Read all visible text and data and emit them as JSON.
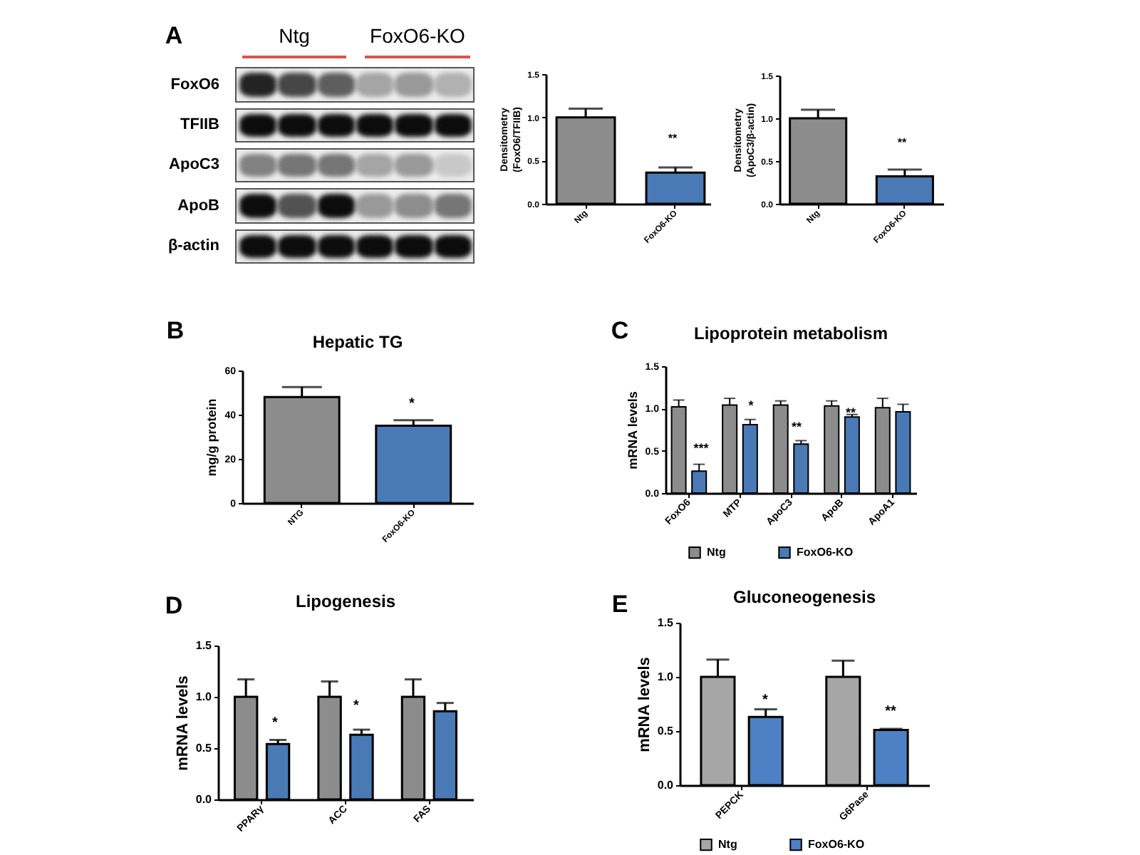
{
  "chart_data": [
    {
      "type": "other",
      "categories": [
        "Ntg",
        "FoxO6-KO"
      ],
      "y_categories": [
        "FoxO6",
        "TFIIB",
        "ApoC3",
        "ApoB",
        "β-actin"
      ],
      "colors": [
        "#d9534f",
        "#d9534f"
      ],
      "annotations": [
        "A"
      ]
    },
    {
      "type": "bar",
      "ylabel": "Densitometry\n(FoxO6/TFIIB)",
      "categories": [
        "Ntg",
        "FoxO6-KO"
      ],
      "values": [
        1.0,
        0.36
      ],
      "errors": [
        [
          1.0,
          1.1
        ],
        [
          0.36,
          0.42
        ]
      ],
      "colors": [
        "#8c8c8c",
        "#4a7ab5"
      ],
      "ylim": [
        0,
        1.5
      ],
      "yticks": [
        {
          "value": 0,
          "label": "0.0"
        },
        {
          "value": 0.5,
          "label": "0.5"
        },
        {
          "value": 1,
          "label": "1.0"
        },
        {
          "value": 1.5,
          "label": "1.5"
        }
      ],
      "annotations": [
        "**"
      ]
    },
    {
      "type": "bar",
      "ylabel": "Densitometry\n(ApoC3/β-actin)",
      "categories": [
        "Ntg",
        "FoxO6-KO"
      ],
      "values": [
        1.0,
        0.32
      ],
      "errors": [
        [
          1.0,
          1.1
        ],
        [
          0.32,
          0.4
        ]
      ],
      "colors": [
        "#8c8c8c",
        "#4a7ab5"
      ],
      "ylim": [
        0,
        1.5
      ],
      "yticks": [
        {
          "value": 0,
          "label": "0.0"
        },
        {
          "value": 0.5,
          "label": "0.5"
        },
        {
          "value": 1,
          "label": "1.0"
        },
        {
          "value": 1.5,
          "label": "1.5"
        }
      ],
      "annotations": [
        "**"
      ]
    },
    {
      "type": "bar",
      "title": "Hepatic TG",
      "ylabel": "mg/g protein",
      "categories": [
        "NTG",
        "FoxO6-KO"
      ],
      "values": [
        48,
        35
      ],
      "errors": [
        [
          48,
          52.5
        ],
        [
          35,
          37.5
        ]
      ],
      "colors": [
        "#8c8c8c",
        "#4a7ab5"
      ],
      "ylim": [
        0,
        60
      ],
      "yticks": [
        0,
        20,
        40,
        60
      ],
      "annotations": [
        "B",
        "*"
      ]
    },
    {
      "type": "bar",
      "title": "Lipoprotein metabolism",
      "ylabel": "mRNA levels",
      "categories": [
        "FoxO6",
        "MTP",
        "ApoC3",
        "ApoB",
        "ApoA1"
      ],
      "series": [
        {
          "name": "Ntg",
          "color": "#8c8c8c",
          "values": [
            1.02,
            1.04,
            1.04,
            1.03,
            1.01
          ],
          "errors": [
            [
              1.02,
              1.1
            ],
            [
              1.04,
              1.12
            ],
            [
              1.04,
              1.09
            ],
            [
              1.03,
              1.09
            ],
            [
              1.01,
              1.12
            ]
          ]
        },
        {
          "name": "FoxO6-KO",
          "color": "#4a7ab5",
          "values": [
            0.26,
            0.81,
            0.58,
            0.9,
            0.96
          ],
          "errors": [
            [
              0.26,
              0.34
            ],
            [
              0.81,
              0.87
            ],
            [
              0.58,
              0.62
            ],
            [
              0.9,
              0.93
            ],
            [
              0.96,
              1.05
            ]
          ]
        }
      ],
      "ylim": [
        0,
        1.5
      ],
      "yticks": [
        {
          "value": 0,
          "label": "0.0"
        },
        {
          "value": 0.5,
          "label": "0.5"
        },
        {
          "value": 1,
          "label": "1.0"
        },
        {
          "value": 1.5,
          "label": "1.5"
        }
      ],
      "legend": "bottom",
      "annotations": [
        "C",
        "***",
        "*",
        "**",
        "**"
      ]
    },
    {
      "type": "bar",
      "title": "Lipogenesis",
      "ylabel": "mRNA levels",
      "categories": [
        "PPARγ",
        "ACC",
        "FAS"
      ],
      "series": [
        {
          "color": "#8c8c8c",
          "values": [
            1.0,
            1.0,
            1.0
          ],
          "errors": [
            [
              1.0,
              1.17
            ],
            [
              1.0,
              1.15
            ],
            [
              1.0,
              1.17
            ]
          ]
        },
        {
          "color": "#4a7ab5",
          "values": [
            0.54,
            0.63,
            0.86
          ],
          "errors": [
            [
              0.54,
              0.58
            ],
            [
              0.63,
              0.68
            ],
            [
              0.86,
              0.94
            ]
          ]
        }
      ],
      "ylim": [
        0,
        1.5
      ],
      "yticks": [
        {
          "value": 0,
          "label": "0.0"
        },
        {
          "value": 0.5,
          "label": "0.5"
        },
        {
          "value": 1,
          "label": "1.0"
        },
        {
          "value": 1.5,
          "label": "1.5"
        }
      ],
      "annotations": [
        "D",
        "*",
        "*"
      ]
    },
    {
      "type": "bar",
      "title": "Gluconeogenesis",
      "ylabel": "mRNA levels",
      "categories": [
        "PEPCK",
        "G6Pase"
      ],
      "series": [
        {
          "name": "Ntg",
          "color": "#a6a6a6",
          "values": [
            1.0,
            1.0
          ],
          "errors": [
            [
              1.0,
              1.16
            ],
            [
              1.0,
              1.15
            ]
          ]
        },
        {
          "name": "FoxO6-KO",
          "color": "#4d80c4",
          "values": [
            0.63,
            0.51
          ],
          "errors": [
            [
              0.63,
              0.7
            ],
            [
              0.51,
              0.52
            ]
          ]
        }
      ],
      "ylim": [
        0,
        1.5
      ],
      "yticks": [
        {
          "value": 0,
          "label": "0.0"
        },
        {
          "value": 0.5,
          "label": "0.5"
        },
        {
          "value": 1,
          "label": "1.0"
        },
        {
          "value": 1.5,
          "label": "1.5"
        }
      ],
      "legend": "bottom",
      "annotations": [
        "E",
        "*",
        "**"
      ]
    }
  ]
}
